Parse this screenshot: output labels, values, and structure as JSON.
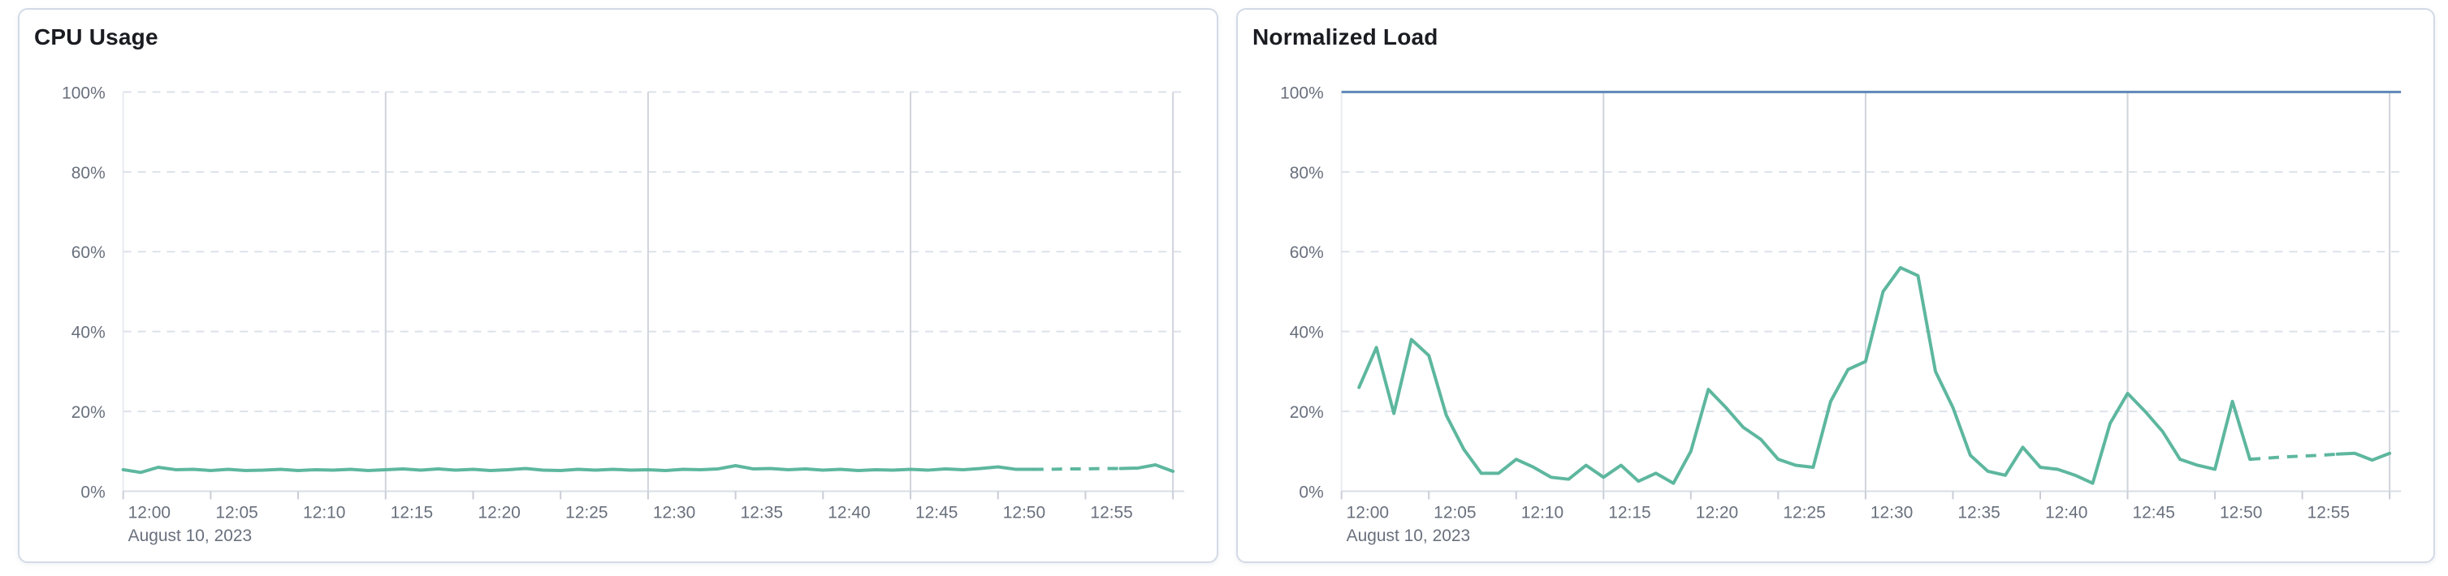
{
  "page": {
    "background": "#ffffff"
  },
  "colors": {
    "series_green": "#54B399",
    "threshold_blue": "#5E87B8",
    "title_text": "#1A1C21",
    "axis_text": "#69707D",
    "grid_dashed": "#DDE1EA",
    "grid_vertical": "#CFD3DB",
    "axis_baseline": "#D8DCE4",
    "axis_left_line": "#E8EBF2",
    "tick_mark": "#C9CDD6",
    "panel_border": "#D3DAE6"
  },
  "chart_data": [
    {
      "type": "line",
      "title": "CPU Usage",
      "unit": "%",
      "date_label": "August 10, 2023",
      "x_unit": "minutes after 12:00",
      "x_domain_minutes": [
        0,
        61
      ],
      "ylim": [
        0,
        100
      ],
      "grid": {
        "h_dashed_values": [
          20,
          40,
          60,
          80,
          100
        ],
        "v_solid_minutes": [
          15,
          30,
          45,
          60
        ],
        "legend": "none"
      },
      "y_ticks": [
        {
          "v": 0,
          "label": "0%"
        },
        {
          "v": 20,
          "label": "20%"
        },
        {
          "v": 40,
          "label": "40%"
        },
        {
          "v": 60,
          "label": "60%"
        },
        {
          "v": 80,
          "label": "80%"
        },
        {
          "v": 100,
          "label": "100%"
        }
      ],
      "x_ticks": [
        {
          "m": 0,
          "label": "12:00"
        },
        {
          "m": 5,
          "label": "12:05"
        },
        {
          "m": 10,
          "label": "12:10"
        },
        {
          "m": 15,
          "label": "12:15"
        },
        {
          "m": 20,
          "label": "12:20"
        },
        {
          "m": 25,
          "label": "12:25"
        },
        {
          "m": 30,
          "label": "12:30"
        },
        {
          "m": 35,
          "label": "12:35"
        },
        {
          "m": 40,
          "label": "12:40"
        },
        {
          "m": 45,
          "label": "12:45"
        },
        {
          "m": 50,
          "label": "12:50"
        },
        {
          "m": 55,
          "label": "12:55"
        },
        {
          "m": 60,
          "label": ""
        }
      ],
      "threshold": null,
      "series": [
        {
          "name": "CPU Usage",
          "color": "#54B399",
          "segments": [
            {
              "style": "solid",
              "points": [
                [
                  0,
                  5.4
                ],
                [
                  1,
                  4.7
                ],
                [
                  2,
                  6.0
                ],
                [
                  3,
                  5.4
                ],
                [
                  4,
                  5.5
                ],
                [
                  5,
                  5.2
                ],
                [
                  6,
                  5.5
                ],
                [
                  7,
                  5.2
                ],
                [
                  8,
                  5.3
                ],
                [
                  9,
                  5.5
                ],
                [
                  10,
                  5.2
                ],
                [
                  11,
                  5.4
                ],
                [
                  12,
                  5.3
                ],
                [
                  13,
                  5.5
                ],
                [
                  14,
                  5.2
                ],
                [
                  15,
                  5.4
                ],
                [
                  16,
                  5.6
                ],
                [
                  17,
                  5.3
                ],
                [
                  18,
                  5.6
                ],
                [
                  19,
                  5.3
                ],
                [
                  20,
                  5.5
                ],
                [
                  21,
                  5.2
                ],
                [
                  22,
                  5.4
                ],
                [
                  23,
                  5.7
                ],
                [
                  24,
                  5.3
                ],
                [
                  25,
                  5.2
                ],
                [
                  26,
                  5.5
                ],
                [
                  27,
                  5.3
                ],
                [
                  28,
                  5.5
                ],
                [
                  29,
                  5.3
                ],
                [
                  30,
                  5.4
                ],
                [
                  31,
                  5.2
                ],
                [
                  32,
                  5.5
                ],
                [
                  33,
                  5.4
                ],
                [
                  34,
                  5.6
                ],
                [
                  35,
                  6.4
                ],
                [
                  36,
                  5.6
                ],
                [
                  37,
                  5.7
                ],
                [
                  38,
                  5.4
                ],
                [
                  39,
                  5.6
                ],
                [
                  40,
                  5.3
                ],
                [
                  41,
                  5.5
                ],
                [
                  42,
                  5.2
                ],
                [
                  43,
                  5.4
                ],
                [
                  44,
                  5.3
                ],
                [
                  45,
                  5.5
                ],
                [
                  46,
                  5.3
                ],
                [
                  47,
                  5.6
                ],
                [
                  48,
                  5.4
                ],
                [
                  49,
                  5.7
                ],
                [
                  50,
                  6.1
                ],
                [
                  51,
                  5.5
                ],
                [
                  52,
                  5.5
                ]
              ]
            },
            {
              "style": "dashed",
              "points": [
                [
                  52,
                  5.5
                ],
                [
                  53,
                  5.5
                ],
                [
                  54,
                  5.6
                ],
                [
                  55,
                  5.6
                ],
                [
                  56,
                  5.7
                ],
                [
                  57,
                  5.7
                ]
              ]
            },
            {
              "style": "solid",
              "points": [
                [
                  57,
                  5.7
                ],
                [
                  58,
                  5.8
                ],
                [
                  59,
                  6.6
                ],
                [
                  60,
                  5.0
                ]
              ]
            }
          ]
        }
      ]
    },
    {
      "type": "line",
      "title": "Normalized Load",
      "unit": "%",
      "date_label": "August 10, 2023",
      "x_unit": "minutes after 12:00",
      "x_domain_minutes": [
        0,
        61
      ],
      "ylim": [
        0,
        100
      ],
      "grid": {
        "h_dashed_values": [
          20,
          40,
          60,
          80,
          100
        ],
        "v_solid_minutes": [
          15,
          30,
          45,
          60
        ],
        "legend": "none"
      },
      "y_ticks": [
        {
          "v": 0,
          "label": "0%"
        },
        {
          "v": 20,
          "label": "20%"
        },
        {
          "v": 40,
          "label": "40%"
        },
        {
          "v": 60,
          "label": "60%"
        },
        {
          "v": 80,
          "label": "80%"
        },
        {
          "v": 100,
          "label": "100%"
        }
      ],
      "x_ticks": [
        {
          "m": 0,
          "label": "12:00"
        },
        {
          "m": 5,
          "label": "12:05"
        },
        {
          "m": 10,
          "label": "12:10"
        },
        {
          "m": 15,
          "label": "12:15"
        },
        {
          "m": 20,
          "label": "12:20"
        },
        {
          "m": 25,
          "label": "12:25"
        },
        {
          "m": 30,
          "label": "12:30"
        },
        {
          "m": 35,
          "label": "12:35"
        },
        {
          "m": 40,
          "label": "12:40"
        },
        {
          "m": 45,
          "label": "12:45"
        },
        {
          "m": 50,
          "label": "12:50"
        },
        {
          "m": 55,
          "label": "12:55"
        },
        {
          "m": 60,
          "label": ""
        }
      ],
      "threshold": {
        "value": 100,
        "color": "#5E87B8"
      },
      "series": [
        {
          "name": "Normalized Load",
          "color": "#54B399",
          "segments": [
            {
              "style": "solid",
              "points": [
                [
                  1,
                  26
                ],
                [
                  2,
                  36
                ],
                [
                  3,
                  19.5
                ],
                [
                  4,
                  38
                ],
                [
                  5,
                  34
                ],
                [
                  6,
                  19
                ],
                [
                  7,
                  10.5
                ],
                [
                  8,
                  4.5
                ],
                [
                  9,
                  4.5
                ],
                [
                  10,
                  8
                ],
                [
                  11,
                  6
                ],
                [
                  12,
                  3.5
                ],
                [
                  13,
                  3
                ],
                [
                  14,
                  6.5
                ],
                [
                  15,
                  3.5
                ],
                [
                  16,
                  6.5
                ],
                [
                  17,
                  2.5
                ],
                [
                  18,
                  4.5
                ],
                [
                  19,
                  2
                ],
                [
                  20,
                  10
                ],
                [
                  21,
                  25.5
                ],
                [
                  22,
                  21
                ],
                [
                  23,
                  16
                ],
                [
                  24,
                  13
                ],
                [
                  25,
                  8
                ],
                [
                  26,
                  6.5
                ],
                [
                  27,
                  6
                ],
                [
                  28,
                  22.5
                ],
                [
                  29,
                  30.5
                ],
                [
                  30,
                  32.5
                ],
                [
                  31,
                  50
                ],
                [
                  32,
                  56
                ],
                [
                  33,
                  54
                ],
                [
                  34,
                  30
                ],
                [
                  35,
                  21
                ],
                [
                  36,
                  9
                ],
                [
                  37,
                  5
                ],
                [
                  38,
                  4
                ],
                [
                  39,
                  11
                ],
                [
                  40,
                  6
                ],
                [
                  41,
                  5.5
                ],
                [
                  42,
                  4
                ],
                [
                  43,
                  2
                ],
                [
                  44,
                  17
                ],
                [
                  45,
                  24.5
                ],
                [
                  46,
                  20
                ],
                [
                  47,
                  15
                ],
                [
                  48,
                  8
                ],
                [
                  49,
                  6.5
                ],
                [
                  50,
                  5.5
                ],
                [
                  51,
                  22.5
                ],
                [
                  52,
                  8
                ]
              ]
            },
            {
              "style": "dashed",
              "points": [
                [
                  52,
                  8
                ],
                [
                  53,
                  8.3
                ],
                [
                  54,
                  8.6
                ],
                [
                  55,
                  8.8
                ],
                [
                  56,
                  9
                ],
                [
                  57,
                  9.3
                ]
              ]
            },
            {
              "style": "solid",
              "points": [
                [
                  57,
                  9.3
                ],
                [
                  58,
                  9.5
                ],
                [
                  59,
                  7.8
                ],
                [
                  60,
                  9.5
                ]
              ]
            }
          ]
        }
      ]
    }
  ]
}
